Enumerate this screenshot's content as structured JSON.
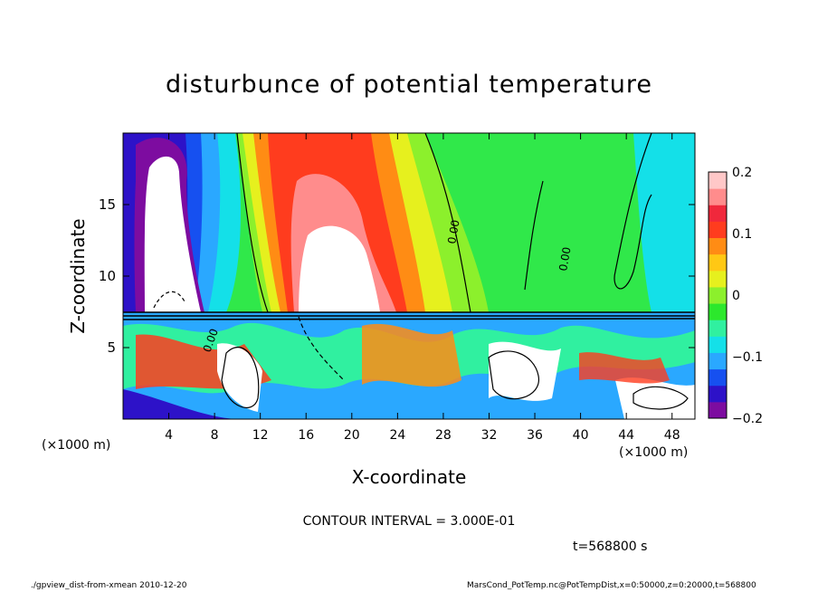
{
  "title": "disturbunce of potential temperature",
  "footer": {
    "left": "./gpview_dist-from-xmean  2010-12-20",
    "right": "MarsCond_PotTemp.nc@PotTempDist,x=0:50000,z=0:20000,t=568800"
  },
  "contour_interval": "CONTOUR INTERVAL = 3.000E-01",
  "time_label": "t=568800 s",
  "chart_data": {
    "type": "heatmap",
    "title": "disturbunce of potential temperature",
    "xlabel": "X-coordinate",
    "ylabel": "Z-coordinate",
    "x_unit_label": "(×1000 m)",
    "xlim": [
      0,
      50
    ],
    "ylim": [
      0,
      20
    ],
    "xticks": [
      4,
      8,
      12,
      16,
      20,
      24,
      28,
      32,
      36,
      40,
      44,
      48
    ],
    "yticks": [
      5,
      10,
      15
    ],
    "colorbar": {
      "min": -0.2,
      "max": 0.2,
      "ticks": [
        0.2,
        0.1,
        0,
        -0.1,
        -0.2
      ],
      "tick_labels": [
        "0.2",
        "0.1",
        "0",
        "−0.1",
        "−0.2"
      ],
      "colors": [
        "#7d0ca0",
        "#2d12c8",
        "#1650f0",
        "#2aa8ff",
        "#14e0e8",
        "#30f0a0",
        "#2ce82c",
        "#8cf02c",
        "#e6f01e",
        "#ffc814",
        "#ff8c14",
        "#ff3c1e",
        "#f0283c",
        "#ff8c8c",
        "#ffc8c8"
      ]
    },
    "contour_labels": [
      "0.00",
      "0.00",
      "0.00"
    ],
    "contour_interval": 0.3,
    "time_s": 568800
  },
  "colors": {
    "white_region": "#ffffff",
    "contour_line": "#000000"
  }
}
